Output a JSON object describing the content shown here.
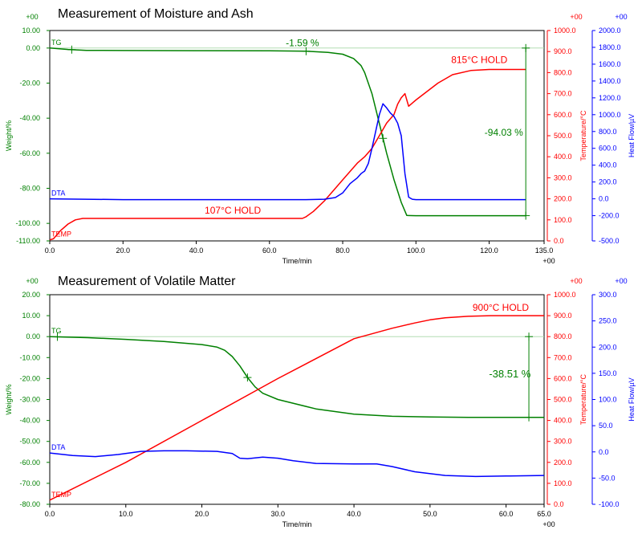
{
  "colors": {
    "tg": "#008000",
    "temp": "#ff0000",
    "dta": "#0000ff",
    "frame": "#000000",
    "grid": "#c8c8c8"
  },
  "chart_data": [
    {
      "type": "line",
      "title": "Measurement of Moisture and Ash",
      "xlabel": "Time/min",
      "xlim": [
        0,
        135
      ],
      "x_ticks": [
        "0.0",
        "20.0",
        "40.0",
        "60.0",
        "80.0",
        "100.0",
        "120.0",
        "135.0"
      ],
      "x_suffix": "+00",
      "y_left": {
        "label": "Weight/%",
        "ylim": [
          -110,
          10
        ],
        "ticks": [
          "10.00",
          "0.00",
          "-20.00",
          "-40.00",
          "-60.00",
          "-80.00",
          "-100.00",
          "-110.00"
        ],
        "tick_values": [
          10,
          0,
          -20,
          -40,
          -60,
          -80,
          -100,
          -110
        ],
        "suffix": "+00"
      },
      "y_mid": {
        "label": "Temperature/°C",
        "ylim": [
          0,
          1000
        ],
        "ticks": [
          "1000.0",
          "900.0",
          "800.0",
          "700.0",
          "600.0",
          "500.0",
          "400.0",
          "300.0",
          "200.0",
          "100.0",
          "0.0"
        ],
        "tick_values": [
          1000,
          900,
          800,
          700,
          600,
          500,
          400,
          300,
          200,
          100,
          0
        ],
        "suffix": "+00"
      },
      "y_right": {
        "label": "Heat Flow/µV",
        "ylim": [
          -500,
          2000
        ],
        "ticks": [
          "2000.0",
          "1800.0",
          "1600.0",
          "1400.0",
          "1200.0",
          "1000.0",
          "800.0",
          "600.0",
          "400.0",
          "200.0",
          "0.0",
          "-200.0",
          "-500.0"
        ],
        "tick_values": [
          2000,
          1800,
          1600,
          1400,
          1200,
          1000,
          800,
          600,
          400,
          200,
          0,
          -200,
          -500
        ],
        "suffix": "+00"
      },
      "series": [
        {
          "name": "TG",
          "axis": "left",
          "color": "#008000",
          "x": [
            0,
            5,
            10,
            20,
            40,
            60,
            70,
            76,
            80,
            83,
            85,
            86,
            88,
            90,
            92,
            94,
            96,
            97.5,
            100,
            110,
            120,
            130
          ],
          "y": [
            0,
            -0.8,
            -1.3,
            -1.4,
            -1.5,
            -1.59,
            -1.8,
            -2.5,
            -3.5,
            -6,
            -10,
            -14,
            -26,
            -43,
            -60,
            -75,
            -88,
            -95.5,
            -95.6,
            -95.6,
            -95.6,
            -95.6
          ]
        },
        {
          "name": "TEMP",
          "axis": "mid",
          "color": "#ff0000",
          "x": [
            0,
            1,
            3,
            5,
            7,
            9,
            10,
            20,
            40,
            60,
            69,
            70,
            72,
            75,
            78,
            80,
            82,
            84,
            86,
            88,
            89,
            90,
            92,
            94,
            95,
            96,
            97,
            98,
            100,
            103,
            106,
            110,
            115,
            120,
            130
          ],
          "y": [
            5,
            10,
            50,
            80,
            100,
            107,
            107,
            107,
            107,
            107,
            107,
            115,
            140,
            190,
            250,
            290,
            330,
            370,
            400,
            440,
            470,
            500,
            560,
            600,
            650,
            680,
            700,
            640,
            670,
            710,
            750,
            790,
            810,
            815,
            815
          ]
        },
        {
          "name": "DTA",
          "axis": "right",
          "color": "#0000ff",
          "x": [
            0,
            20,
            40,
            60,
            70,
            75,
            78,
            80,
            82,
            84,
            85,
            86,
            87,
            88,
            89,
            90,
            91,
            92,
            93,
            94,
            95,
            96,
            97,
            98,
            99,
            100,
            110,
            120,
            130
          ],
          "y": [
            0,
            -10,
            -10,
            -10,
            -10,
            -5,
            15,
            70,
            180,
            250,
            300,
            330,
            420,
            600,
            800,
            1000,
            1130,
            1080,
            1020,
            980,
            900,
            750,
            300,
            20,
            -5,
            -10,
            -10,
            -10,
            -10
          ]
        }
      ],
      "annotations": {
        "tg_step_1": "-1.59 %",
        "tg_step_2": "-94.03 %",
        "hold_low": "107°C   HOLD",
        "hold_high": "815°C HOLD",
        "tg_label": "TG",
        "dta_label": "DTA",
        "temp_label": "TEMP"
      },
      "markers": [
        {
          "series": "TG",
          "x": [
            6,
            70,
            91
          ]
        },
        {
          "series": "TG",
          "x": [
            130
          ],
          "y_fixed": [
            0,
            -95.6
          ]
        }
      ],
      "bracket": {
        "x": 130,
        "y_top": 0,
        "y_bottom": -95.6
      }
    },
    {
      "type": "line",
      "title": "Measurement of Volatile Matter",
      "xlabel": "Time/min",
      "xlim": [
        0,
        65
      ],
      "x_ticks": [
        "0.0",
        "10.0",
        "20.0",
        "30.0",
        "40.0",
        "50.0",
        "60.0",
        "65.0"
      ],
      "x_suffix": "+00",
      "y_left": {
        "label": "Weight/%",
        "ylim": [
          -80,
          20
        ],
        "ticks": [
          "20.00",
          "10.00",
          "0.00",
          "-10.00",
          "-20.00",
          "-30.00",
          "-40.00",
          "-50.00",
          "-60.00",
          "-70.00",
          "-80.00"
        ],
        "tick_values": [
          20,
          10,
          0,
          -10,
          -20,
          -30,
          -40,
          -50,
          -60,
          -70,
          -80
        ],
        "suffix": "+00"
      },
      "y_mid": {
        "label": "Temperature/°C",
        "ylim": [
          0,
          1000
        ],
        "ticks": [
          "1000.0",
          "900.0",
          "800.0",
          "700.0",
          "600.0",
          "500.0",
          "400.0",
          "300.0",
          "200.0",
          "100.0",
          "0.0"
        ],
        "tick_values": [
          1000,
          900,
          800,
          700,
          600,
          500,
          400,
          300,
          200,
          100,
          0
        ],
        "suffix": "+00"
      },
      "y_right": {
        "label": "Heat Flow/µV",
        "ylim": [
          -100,
          300
        ],
        "ticks": [
          "300.0",
          "250.0",
          "200.0",
          "150.0",
          "100.0",
          "50.0",
          "0.0",
          "-50.0",
          "-100.0"
        ],
        "tick_values": [
          300,
          250,
          200,
          150,
          100,
          50,
          0,
          -50,
          -100
        ],
        "suffix": "+00"
      },
      "series": [
        {
          "name": "TG",
          "axis": "left",
          "color": "#008000",
          "x": [
            0,
            5,
            10,
            15,
            20,
            22,
            23,
            24,
            25,
            26,
            27,
            28,
            30,
            35,
            40,
            45,
            50,
            55,
            60,
            65
          ],
          "y": [
            0,
            -0.5,
            -1.3,
            -2.3,
            -3.8,
            -5,
            -6.5,
            -9.5,
            -14,
            -19.5,
            -24,
            -27,
            -30,
            -34.5,
            -37,
            -38,
            -38.3,
            -38.5,
            -38.51,
            -38.51
          ]
        },
        {
          "name": "TEMP",
          "axis": "mid",
          "color": "#ff0000",
          "x": [
            0,
            10,
            20,
            30,
            40,
            45,
            48,
            50,
            52,
            55,
            58,
            60,
            65
          ],
          "y": [
            20,
            200,
            400,
            600,
            790,
            840,
            865,
            880,
            890,
            897,
            900,
            900,
            900
          ]
        },
        {
          "name": "DTA",
          "axis": "right",
          "color": "#0000ff",
          "x": [
            0,
            3,
            6,
            9,
            12,
            15,
            18,
            22,
            24,
            25,
            26,
            28,
            30,
            32,
            35,
            40,
            43,
            45,
            48,
            52,
            56,
            60,
            65
          ],
          "y": [
            -2,
            -7,
            -9,
            -5,
            1,
            2,
            2,
            1,
            -3,
            -12,
            -13,
            -10,
            -12,
            -17,
            -22,
            -23,
            -23,
            -28,
            -38,
            -45,
            -47,
            -46,
            -45
          ]
        }
      ],
      "annotations": {
        "tg_step": "-38.51 %",
        "hold": "900°C   HOLD",
        "tg_label": "TG",
        "dta_label": "DTA",
        "temp_label": "TEMP"
      },
      "markers": [
        {
          "series": "TG",
          "x": [
            1,
            26
          ]
        },
        {
          "series": "TG",
          "x": [
            63
          ],
          "y_fixed": [
            0,
            -38.51
          ]
        }
      ],
      "bracket": {
        "x": 63,
        "y_top": 0,
        "y_bottom": -38.51
      }
    }
  ]
}
